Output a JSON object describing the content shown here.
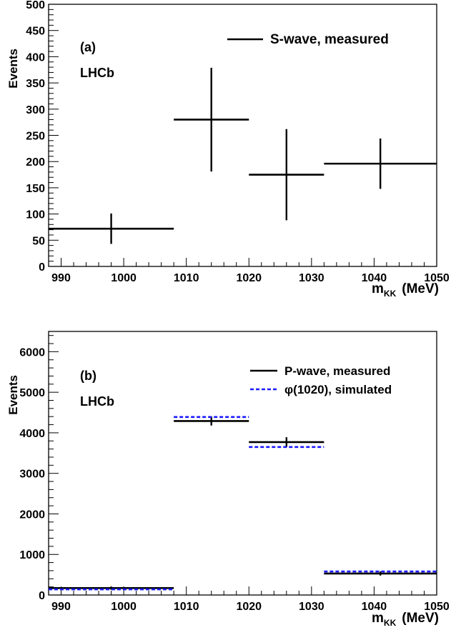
{
  "chart_data": [
    {
      "type": "scatter",
      "panel_label": "(a)",
      "experiment": "LHCb",
      "xlabel_main": "m",
      "xlabel_sub": "KK",
      "xlabel_unit": "(MeV)",
      "ylabel": "Events",
      "xlim": [
        988,
        1050
      ],
      "ylim": [
        0,
        500
      ],
      "x_ticks": [
        990,
        1000,
        1010,
        1020,
        1030,
        1040,
        1050
      ],
      "y_ticks": [
        0,
        50,
        100,
        150,
        200,
        250,
        300,
        350,
        400,
        450,
        500
      ],
      "legend_position": "top-right",
      "series": [
        {
          "name": "S-wave, measured",
          "color": "#000000",
          "style": "solid",
          "bins": [
            {
              "x_low": 988,
              "x_high": 1008,
              "x": 998,
              "y": 72,
              "err": 29
            },
            {
              "x_low": 1008,
              "x_high": 1020,
              "x": 1014,
              "y": 280,
              "err": 99
            },
            {
              "x_low": 1020,
              "x_high": 1032,
              "x": 1026,
              "y": 175,
              "err": 87
            },
            {
              "x_low": 1032,
              "x_high": 1050,
              "x": 1041,
              "y": 196,
              "err": 48
            }
          ]
        }
      ]
    },
    {
      "type": "scatter",
      "panel_label": "(b)",
      "experiment": "LHCb",
      "xlabel_main": "m",
      "xlabel_sub": "KK",
      "xlabel_unit": "(MeV)",
      "ylabel": "Events",
      "xlim": [
        988,
        1050
      ],
      "ylim": [
        0,
        6500
      ],
      "x_ticks": [
        990,
        1000,
        1010,
        1020,
        1030,
        1040,
        1050
      ],
      "y_ticks": [
        0,
        1000,
        2000,
        3000,
        4000,
        5000,
        6000
      ],
      "legend_position": "top-right",
      "series": [
        {
          "name": "P-wave, measured",
          "color": "#000000",
          "style": "solid",
          "bins": [
            {
              "x_low": 988,
              "x_high": 1008,
              "x": 998,
              "y": 170,
              "err": 40
            },
            {
              "x_low": 1008,
              "x_high": 1020,
              "x": 1014,
              "y": 4290,
              "err": 110
            },
            {
              "x_low": 1020,
              "x_high": 1032,
              "x": 1026,
              "y": 3770,
              "err": 120
            },
            {
              "x_low": 1032,
              "x_high": 1050,
              "x": 1041,
              "y": 530,
              "err": 50
            }
          ]
        },
        {
          "name": "φ(1020), simulated",
          "color": "#1a1aff",
          "style": "dashed",
          "bins": [
            {
              "x_low": 988,
              "x_high": 1008,
              "y": 140
            },
            {
              "x_low": 1008,
              "x_high": 1020,
              "y": 4390
            },
            {
              "x_low": 1020,
              "x_high": 1032,
              "y": 3650
            },
            {
              "x_low": 1032,
              "x_high": 1050,
              "y": 580
            }
          ]
        }
      ]
    }
  ]
}
